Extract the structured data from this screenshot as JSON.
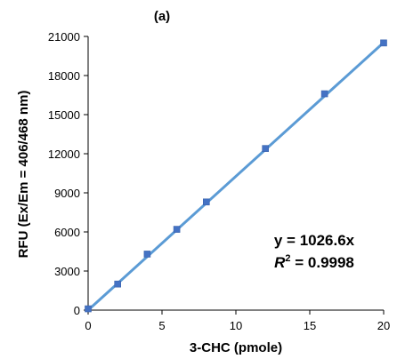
{
  "chart_data": {
    "type": "scatter",
    "panel_label": "(a)",
    "xlabel": "3-CHC (pmole)",
    "ylabel": "RFU (Ex/Em = 406/468 nm)",
    "xlim": [
      0,
      20
    ],
    "ylim": [
      0,
      21000
    ],
    "x_ticks": [
      0,
      5,
      10,
      15,
      20
    ],
    "y_ticks": [
      0,
      3000,
      6000,
      9000,
      12000,
      15000,
      18000,
      21000
    ],
    "grid": false,
    "series": [
      {
        "marker": "square",
        "color": "#4472c4",
        "x": [
          0,
          2,
          4,
          6,
          8,
          12,
          16,
          20
        ],
        "y": [
          100,
          2000,
          4300,
          6200,
          8300,
          12400,
          16600,
          20500
        ]
      }
    ],
    "trendline": {
      "slope": 1026.6,
      "intercept": 0,
      "color": "#5b9bd5",
      "equation": "y = 1026.6x",
      "r2_label": "R",
      "r2_sup": "2",
      "r2_value": " = 0.9998"
    }
  }
}
